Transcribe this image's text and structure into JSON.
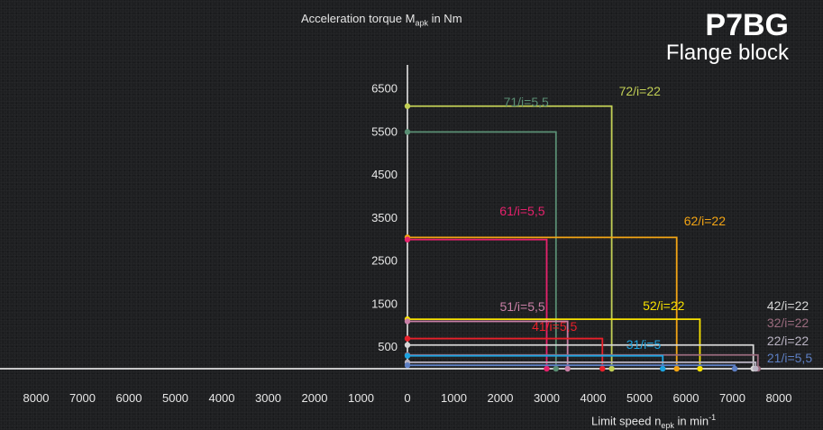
{
  "title": {
    "main": "P7BG",
    "sub": "Flange block"
  },
  "axes": {
    "y_label_prefix": "Acceleration torque M",
    "y_label_sub": "apk",
    "y_label_suffix": " in Nm",
    "x_label_prefix": "Limit speed n",
    "x_label_sub": "epk",
    "x_label_suffix": " in min",
    "x_label_sup": "-1"
  },
  "chart_data": {
    "type": "line",
    "title": "P7BG Flange block",
    "ylabel": "Acceleration torque Mapk in Nm",
    "xlabel": "Limit speed nepk in min-1",
    "y_ticks": [
      500,
      1500,
      2500,
      3500,
      4500,
      5500,
      6500
    ],
    "x_ticks_right": [
      0,
      1000,
      2000,
      3000,
      4000,
      5000,
      6000,
      7000,
      8000
    ],
    "x_ticks_left": [
      8000,
      7000,
      6000,
      5000,
      4000,
      3000,
      2000,
      1000
    ],
    "ylim": [
      0,
      6800
    ],
    "xlim": [
      0,
      8000
    ],
    "grid": false,
    "series": [
      {
        "name": "72/i=22",
        "torque": 6100,
        "speed": 4400,
        "color": "#c2cf55"
      },
      {
        "name": "71/i=5,5",
        "torque": 5500,
        "speed": 3200,
        "color": "#5a8f74"
      },
      {
        "name": "62/i=22",
        "torque": 3050,
        "speed": 5800,
        "color": "#f2a414"
      },
      {
        "name": "61/i=5,5",
        "torque": 3000,
        "speed": 3000,
        "color": "#e6216c"
      },
      {
        "name": "52/i=22",
        "torque": 1150,
        "speed": 6300,
        "color": "#f7e100"
      },
      {
        "name": "51/i=5,5",
        "torque": 1100,
        "speed": 3450,
        "color": "#c97fa6"
      },
      {
        "name": "42/i=22",
        "torque": 550,
        "speed": 7450,
        "color": "#d6d6d6"
      },
      {
        "name": "41/i=5,5",
        "torque": 700,
        "speed": 4200,
        "color": "#e8202a"
      },
      {
        "name": "32/i=22",
        "torque": 320,
        "speed": 7550,
        "color": "#9a6b7e"
      },
      {
        "name": "31/i=5",
        "torque": 300,
        "speed": 5500,
        "color": "#1ca3e0"
      },
      {
        "name": "22/i=22",
        "torque": 150,
        "speed": 7500,
        "color": "#b9b3c2"
      },
      {
        "name": "21/i=5,5",
        "torque": 80,
        "speed": 7050,
        "color": "#5d7fc4"
      }
    ]
  }
}
